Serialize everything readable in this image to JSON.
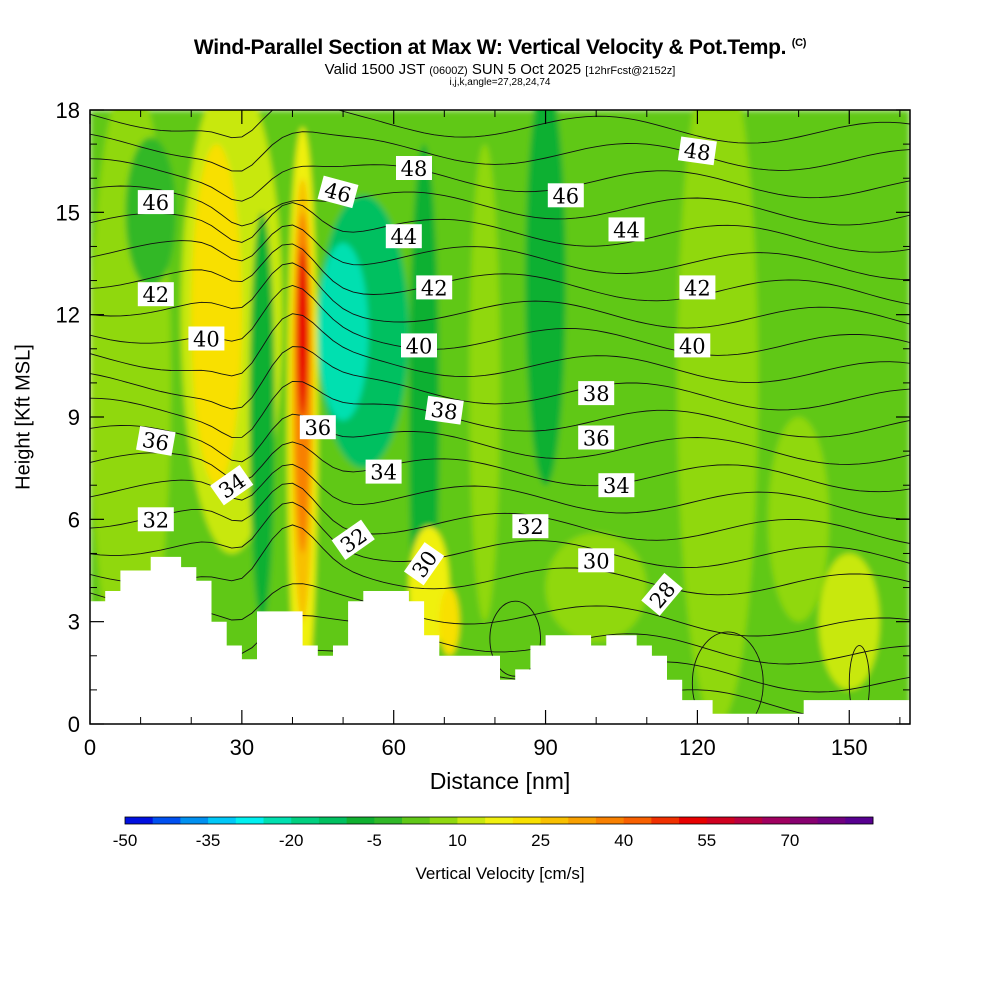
{
  "title": {
    "main": "Wind-Parallel Section at Max W: Vertical Velocity & Pot.Temp.",
    "copyright": "(C)",
    "valid_prefix": "Valid 1500 JST",
    "valid_utc": "(0600Z)",
    "valid_date": "SUN 5 Oct 2025",
    "forecast": "[12hrFcst@2152z]",
    "indices": "i,j,k,angle=27,28,24,74"
  },
  "chart_data": {
    "type": "heatmap",
    "xlabel": "Distance [nm]",
    "ylabel": "Height [Kft MSL]",
    "xlim": [
      0,
      162
    ],
    "ylim": [
      0,
      18
    ],
    "xticks": [
      0,
      30,
      60,
      90,
      120,
      150
    ],
    "yticks": [
      0,
      3,
      6,
      9,
      12,
      15,
      18
    ],
    "colorbar": {
      "label": "Vertical Velocity [cm/s]",
      "ticks": [
        -50,
        -35,
        -20,
        -5,
        10,
        25,
        40,
        55,
        70
      ],
      "min": -50,
      "max": 85,
      "step": 5,
      "colors": [
        "#0010e0",
        "#0050f0",
        "#0090f0",
        "#00c8f8",
        "#00f0f0",
        "#00e0b0",
        "#00d080",
        "#00c060",
        "#10b030",
        "#30b828",
        "#60c818",
        "#90d810",
        "#c8e810",
        "#f0f010",
        "#f8e000",
        "#f8c000",
        "#f8a000",
        "#f88000",
        "#f86000",
        "#f03000",
        "#e80000",
        "#d00020",
        "#b80040",
        "#a00060",
        "#880070",
        "#700080",
        "#580090"
      ]
    },
    "terrain_heights_kft": [
      {
        "x": 0,
        "h": 3.6
      },
      {
        "x": 3,
        "h": 3.6
      },
      {
        "x": 3,
        "h": 3.9
      },
      {
        "x": 6,
        "h": 3.9
      },
      {
        "x": 6,
        "h": 4.5
      },
      {
        "x": 12,
        "h": 4.5
      },
      {
        "x": 12,
        "h": 4.9
      },
      {
        "x": 18,
        "h": 4.9
      },
      {
        "x": 18,
        "h": 4.6
      },
      {
        "x": 21,
        "h": 4.6
      },
      {
        "x": 21,
        "h": 4.2
      },
      {
        "x": 24,
        "h": 4.2
      },
      {
        "x": 24,
        "h": 3.0
      },
      {
        "x": 27,
        "h": 3.0
      },
      {
        "x": 27,
        "h": 2.3
      },
      {
        "x": 30,
        "h": 2.3
      },
      {
        "x": 30,
        "h": 1.9
      },
      {
        "x": 33,
        "h": 1.9
      },
      {
        "x": 33,
        "h": 3.3
      },
      {
        "x": 42,
        "h": 3.3
      },
      {
        "x": 42,
        "h": 2.3
      },
      {
        "x": 45,
        "h": 2.3
      },
      {
        "x": 45,
        "h": 2.0
      },
      {
        "x": 48,
        "h": 2.0
      },
      {
        "x": 48,
        "h": 2.3
      },
      {
        "x": 51,
        "h": 2.3
      },
      {
        "x": 51,
        "h": 3.6
      },
      {
        "x": 54,
        "h": 3.6
      },
      {
        "x": 54,
        "h": 3.9
      },
      {
        "x": 63,
        "h": 3.9
      },
      {
        "x": 63,
        "h": 3.6
      },
      {
        "x": 66,
        "h": 3.6
      },
      {
        "x": 66,
        "h": 2.6
      },
      {
        "x": 69,
        "h": 2.6
      },
      {
        "x": 69,
        "h": 2.0
      },
      {
        "x": 81,
        "h": 2.0
      },
      {
        "x": 81,
        "h": 1.3
      },
      {
        "x": 84,
        "h": 1.3
      },
      {
        "x": 84,
        "h": 1.6
      },
      {
        "x": 87,
        "h": 1.6
      },
      {
        "x": 87,
        "h": 2.3
      },
      {
        "x": 90,
        "h": 2.3
      },
      {
        "x": 90,
        "h": 2.6
      },
      {
        "x": 99,
        "h": 2.6
      },
      {
        "x": 99,
        "h": 2.3
      },
      {
        "x": 102,
        "h": 2.3
      },
      {
        "x": 102,
        "h": 2.6
      },
      {
        "x": 108,
        "h": 2.6
      },
      {
        "x": 108,
        "h": 2.3
      },
      {
        "x": 111,
        "h": 2.3
      },
      {
        "x": 111,
        "h": 2.0
      },
      {
        "x": 114,
        "h": 2.0
      },
      {
        "x": 114,
        "h": 1.3
      },
      {
        "x": 117,
        "h": 1.3
      },
      {
        "x": 117,
        "h": 0.7
      },
      {
        "x": 123,
        "h": 0.7
      },
      {
        "x": 123,
        "h": 0.3
      },
      {
        "x": 141,
        "h": 0.3
      },
      {
        "x": 141,
        "h": 0.7
      },
      {
        "x": 162,
        "h": 0.7
      }
    ],
    "updrafts": [
      {
        "x": 42,
        "z": 11.5,
        "peak_cm_s": 50
      },
      {
        "x": 25,
        "z": 12.0,
        "peak_cm_s": 20
      },
      {
        "x": 67,
        "z": 4.0,
        "peak_cm_s": 15
      }
    ],
    "downdrafts": [
      {
        "x": 50,
        "z": 11.5,
        "peak_cm_s": -25
      },
      {
        "x": 16,
        "z": 14.5,
        "peak_cm_s": -8
      }
    ],
    "theta_contour_labels": [
      {
        "value": 48,
        "x": 64,
        "z": 16.3
      },
      {
        "value": 48,
        "x": 120,
        "z": 16.8
      },
      {
        "value": 46,
        "x": 13,
        "z": 15.3
      },
      {
        "value": 46,
        "x": 49,
        "z": 15.6
      },
      {
        "value": 46,
        "x": 94,
        "z": 15.5
      },
      {
        "value": 44,
        "x": 62,
        "z": 14.3
      },
      {
        "value": 44,
        "x": 106,
        "z": 14.5
      },
      {
        "value": 42,
        "x": 13,
        "z": 12.6
      },
      {
        "value": 42,
        "x": 68,
        "z": 12.8
      },
      {
        "value": 42,
        "x": 120,
        "z": 12.8
      },
      {
        "value": 40,
        "x": 23,
        "z": 11.3
      },
      {
        "value": 40,
        "x": 65,
        "z": 11.1
      },
      {
        "value": 40,
        "x": 119,
        "z": 11.1
      },
      {
        "value": 38,
        "x": 70,
        "z": 9.2
      },
      {
        "value": 38,
        "x": 100,
        "z": 9.7
      },
      {
        "value": 36,
        "x": 13,
        "z": 8.3
      },
      {
        "value": 36,
        "x": 45,
        "z": 8.7
      },
      {
        "value": 36,
        "x": 100,
        "z": 8.4
      },
      {
        "value": 34,
        "x": 28,
        "z": 7.0
      },
      {
        "value": 34,
        "x": 58,
        "z": 7.4
      },
      {
        "value": 34,
        "x": 104,
        "z": 7.0
      },
      {
        "value": 32,
        "x": 13,
        "z": 6.0
      },
      {
        "value": 32,
        "x": 52,
        "z": 5.4
      },
      {
        "value": 32,
        "x": 87,
        "z": 5.8
      },
      {
        "value": 30,
        "x": 66,
        "z": 4.7
      },
      {
        "value": 30,
        "x": 100,
        "z": 4.8
      },
      {
        "value": 28,
        "x": 113,
        "z": 3.8
      }
    ]
  }
}
